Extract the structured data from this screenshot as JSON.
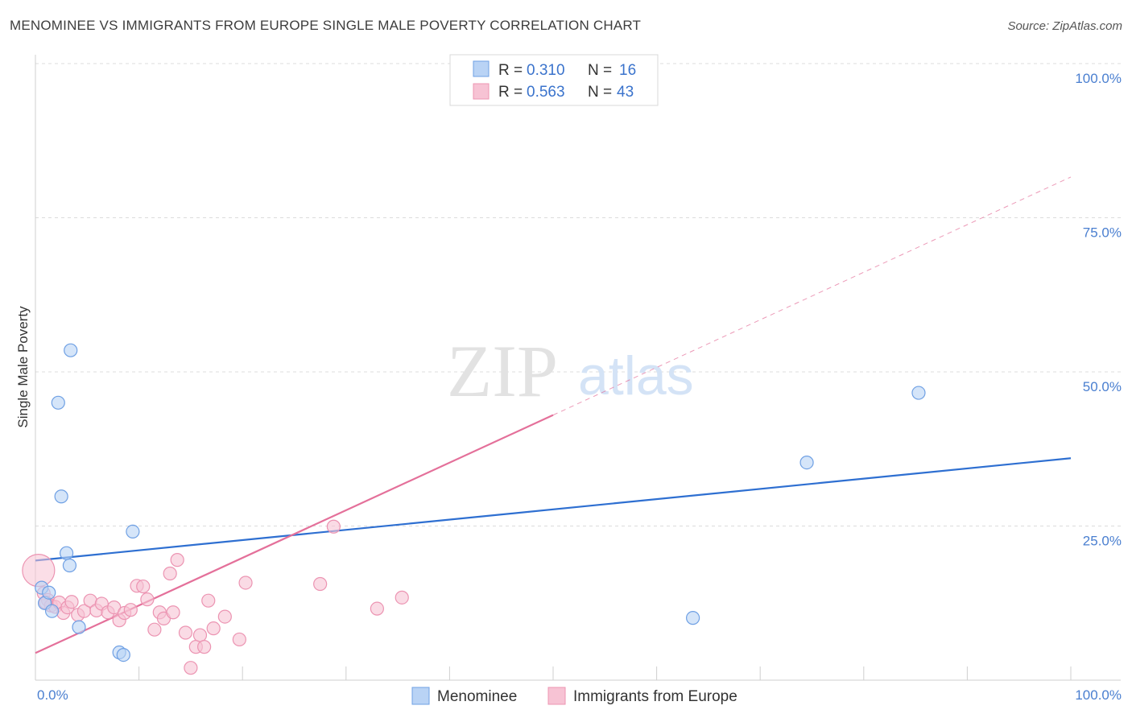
{
  "title": "MENOMINEE VS IMMIGRANTS FROM EUROPE SINGLE MALE POVERTY CORRELATION CHART",
  "source": "Source: ZipAtlas.com",
  "watermark": {
    "zip": "ZIP",
    "atlas": "atlas"
  },
  "colors": {
    "blue_fill": "#b9d3f5",
    "blue_stroke": "#6fa0e4",
    "blue_line": "#2e6fd1",
    "pink_fill": "#f7c3d4",
    "pink_stroke": "#ec94b2",
    "pink_line": "#e4709a",
    "grid": "#dcdcdc",
    "axis_label": "#4a7fd0"
  },
  "legend": {
    "r_label": "R =",
    "n_label": "N =",
    "rows": [
      {
        "series": "blue",
        "r": "0.310",
        "n": "16"
      },
      {
        "series": "pink",
        "r": "0.563",
        "n": "43"
      }
    ]
  },
  "chart_data": {
    "type": "scatter",
    "title": "MENOMINEE VS IMMIGRANTS FROM EUROPE SINGLE MALE POVERTY CORRELATION CHART",
    "xlabel": "",
    "ylabel": "Single Male Poverty",
    "xlim": [
      0,
      100
    ],
    "ylim": [
      0,
      100
    ],
    "x_tick_labels": [
      "0.0%",
      "100.0%"
    ],
    "y_ticks": [
      25,
      50,
      75,
      100
    ],
    "y_tick_labels": [
      "25.0%",
      "50.0%",
      "75.0%",
      "100.0%"
    ],
    "grid": true,
    "legend_position": "top-center",
    "series": [
      {
        "name": "Menominee",
        "color": "blue",
        "points": [
          [
            0.6,
            15.0
          ],
          [
            0.9,
            12.5
          ],
          [
            1.3,
            14.2
          ],
          [
            1.6,
            11.2
          ],
          [
            2.2,
            45.0
          ],
          [
            2.5,
            29.8
          ],
          [
            3.4,
            53.5
          ],
          [
            3.0,
            20.6
          ],
          [
            3.3,
            18.6
          ],
          [
            4.2,
            8.6
          ],
          [
            8.1,
            4.5
          ],
          [
            8.5,
            4.1
          ],
          [
            9.4,
            24.1
          ],
          [
            63.5,
            10.1
          ],
          [
            74.5,
            35.3
          ],
          [
            85.3,
            46.6
          ]
        ],
        "trend": {
          "x0": 0,
          "y0": 19.4,
          "x1": 100,
          "y1": 36.0,
          "dashed_from": null
        }
      },
      {
        "name": "Immigrants from Europe",
        "color": "pink",
        "points": [
          [
            0.3,
            17.8
          ],
          [
            0.8,
            14.1
          ],
          [
            1.2,
            13.0
          ],
          [
            1.5,
            12.1
          ],
          [
            1.9,
            11.9
          ],
          [
            2.3,
            12.6
          ],
          [
            2.7,
            10.9
          ],
          [
            3.1,
            11.8
          ],
          [
            3.5,
            12.7
          ],
          [
            4.1,
            10.6
          ],
          [
            4.7,
            11.2
          ],
          [
            5.3,
            12.9
          ],
          [
            5.9,
            11.3
          ],
          [
            6.4,
            12.4
          ],
          [
            7.0,
            11.0
          ],
          [
            7.6,
            11.8
          ],
          [
            8.1,
            9.7
          ],
          [
            8.6,
            10.9
          ],
          [
            9.2,
            11.4
          ],
          [
            9.8,
            15.3
          ],
          [
            10.4,
            15.2
          ],
          [
            10.8,
            13.1
          ],
          [
            11.5,
            8.2
          ],
          [
            12.0,
            11.0
          ],
          [
            12.4,
            10.0
          ],
          [
            13.0,
            17.3
          ],
          [
            13.3,
            11.0
          ],
          [
            13.7,
            19.5
          ],
          [
            14.5,
            7.7
          ],
          [
            15.0,
            2.0
          ],
          [
            15.5,
            5.4
          ],
          [
            15.9,
            7.3
          ],
          [
            16.3,
            5.4
          ],
          [
            16.7,
            12.9
          ],
          [
            17.2,
            8.4
          ],
          [
            18.3,
            10.3
          ],
          [
            19.7,
            6.6
          ],
          [
            20.3,
            15.8
          ],
          [
            27.5,
            15.6
          ],
          [
            28.8,
            24.9
          ],
          [
            33.0,
            11.6
          ],
          [
            35.4,
            13.4
          ],
          [
            1.0,
            12.6
          ]
        ],
        "trend": {
          "x0": 0,
          "y0": 4.4,
          "x1": 100,
          "y1": 81.6,
          "dashed_from": 50
        }
      }
    ]
  },
  "bottom_legend": [
    {
      "label": "Menominee",
      "series": "blue"
    },
    {
      "label": "Immigrants from Europe",
      "series": "pink"
    }
  ]
}
